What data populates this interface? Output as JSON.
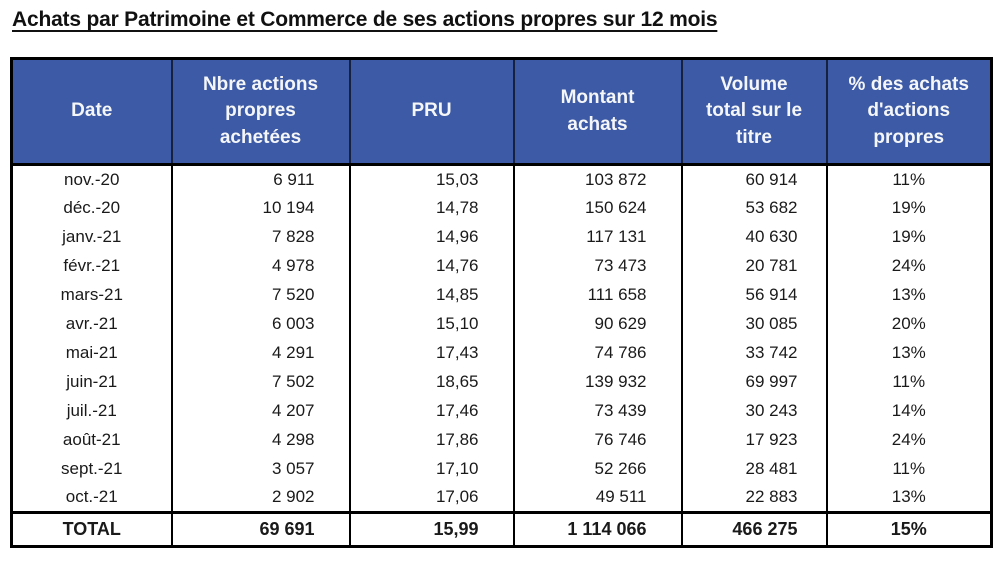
{
  "page": {
    "title": "Achats par Patrimoine et Commerce de ses actions propres sur 12 mois"
  },
  "colors": {
    "header_bg": "#3C5AA5",
    "header_text": "#F5F6F8",
    "header_divider": "#16213E",
    "border": "#000000"
  },
  "table": {
    "headers": [
      "Date",
      "Nbre actions propres achetées",
      "PRU",
      "Montant achats",
      "Volume total sur le titre",
      "% des achats d'actions propres"
    ],
    "rows": [
      [
        "nov.-20",
        "6 911",
        "15,03",
        "103 872",
        "60 914",
        "11%"
      ],
      [
        "déc.-20",
        "10 194",
        "14,78",
        "150 624",
        "53 682",
        "19%"
      ],
      [
        "janv.-21",
        "7 828",
        "14,96",
        "117 131",
        "40 630",
        "19%"
      ],
      [
        "févr.-21",
        "4 978",
        "14,76",
        "73 473",
        "20 781",
        "24%"
      ],
      [
        "mars-21",
        "7 520",
        "14,85",
        "111 658",
        "56 914",
        "13%"
      ],
      [
        "avr.-21",
        "6 003",
        "15,10",
        "90 629",
        "30 085",
        "20%"
      ],
      [
        "mai-21",
        "4 291",
        "17,43",
        "74 786",
        "33 742",
        "13%"
      ],
      [
        "juin-21",
        "7 502",
        "18,65",
        "139 932",
        "69 997",
        "11%"
      ],
      [
        "juil.-21",
        "4 207",
        "17,46",
        "73 439",
        "30 243",
        "14%"
      ],
      [
        "août-21",
        "4 298",
        "17,86",
        "76 746",
        "17 923",
        "24%"
      ],
      [
        "sept.-21",
        "3 057",
        "17,10",
        "52 266",
        "28 481",
        "11%"
      ],
      [
        "oct.-21",
        "2 902",
        "17,06",
        "49 511",
        "22 883",
        "13%"
      ]
    ],
    "total": [
      "TOTAL",
      "69 691",
      "15,99",
      "1 114 066",
      "466 275",
      "15%"
    ]
  }
}
